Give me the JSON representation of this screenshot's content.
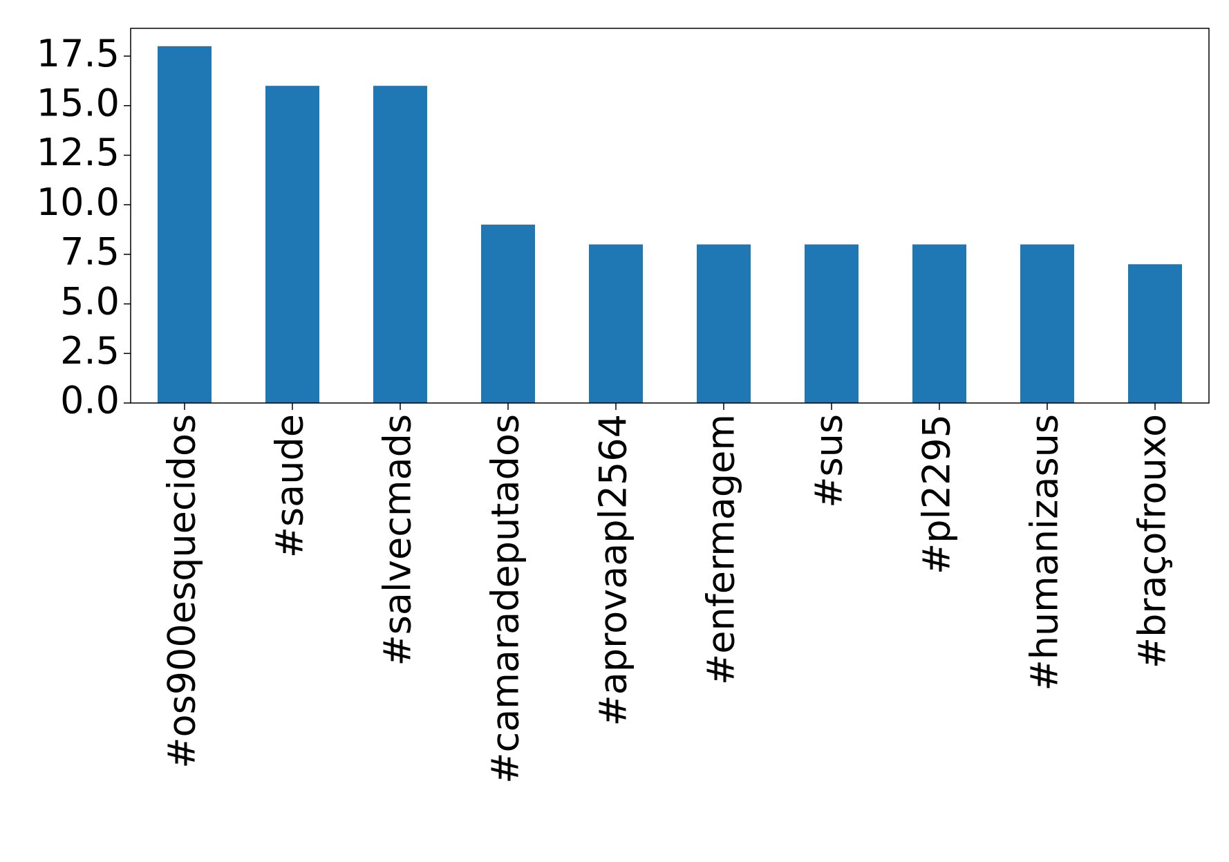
{
  "chart_data": {
    "type": "bar",
    "categories": [
      "#os900esquecidos",
      "#saude",
      "#salvecmads",
      "#camaradeputados",
      "#aprovaapl2564",
      "#enfermagem",
      "#sus",
      "#pl2295",
      "#humanizasus",
      "#braçofrouxo"
    ],
    "values": [
      18,
      16,
      16,
      9,
      8,
      8,
      8,
      8,
      8,
      7
    ],
    "color": "#1f77b4",
    "ylim": [
      0,
      18.9
    ],
    "yticks": [
      {
        "value": 0,
        "label": "0.0"
      },
      2.5,
      {
        "value": 5,
        "label": "5.0"
      },
      7.5,
      {
        "value": 10,
        "label": "10.0"
      },
      12.5,
      {
        "value": 15,
        "label": "15.0"
      },
      17.5
    ],
    "grid": false
  }
}
